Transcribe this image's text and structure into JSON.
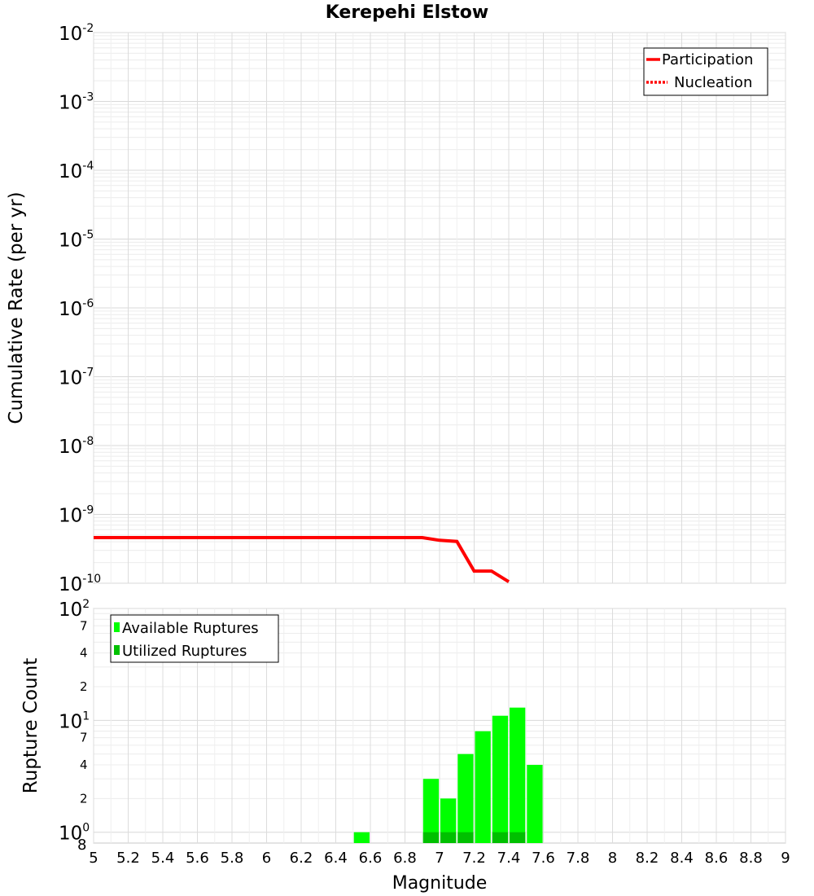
{
  "title": "Kerepehi Elstow",
  "chart_data": [
    {
      "type": "line",
      "title": "Kerepehi Elstow",
      "xlabel": "Magnitude",
      "ylabel": "Cumulative Rate (per yr)",
      "xlim": [
        5,
        9
      ],
      "ylim": [
        1e-10,
        0.01
      ],
      "yscale": "log",
      "grid": true,
      "legend_position": "top-right",
      "y_ticks": [
        {
          "base": "10",
          "exp": "-2"
        },
        {
          "base": "10",
          "exp": "-3"
        },
        {
          "base": "10",
          "exp": "-4"
        },
        {
          "base": "10",
          "exp": "-5"
        },
        {
          "base": "10",
          "exp": "-6"
        },
        {
          "base": "10",
          "exp": "-7"
        },
        {
          "base": "10",
          "exp": "-8"
        },
        {
          "base": "10",
          "exp": "-9"
        },
        {
          "base": "10",
          "exp": "-10"
        }
      ],
      "series": [
        {
          "name": "Participation",
          "style": "solid",
          "color": "#ff0000",
          "x": [
            5.0,
            5.1,
            5.2,
            5.3,
            5.4,
            5.5,
            5.6,
            5.7,
            5.8,
            5.9,
            6.0,
            6.1,
            6.2,
            6.3,
            6.4,
            6.5,
            6.6,
            6.7,
            6.8,
            6.9,
            7.0,
            7.1,
            7.2,
            7.3,
            7.4
          ],
          "y": [
            4.6e-10,
            4.6e-10,
            4.6e-10,
            4.6e-10,
            4.6e-10,
            4.6e-10,
            4.6e-10,
            4.6e-10,
            4.6e-10,
            4.6e-10,
            4.6e-10,
            4.6e-10,
            4.6e-10,
            4.6e-10,
            4.6e-10,
            4.6e-10,
            4.6e-10,
            4.6e-10,
            4.6e-10,
            4.6e-10,
            4.2e-10,
            4.05e-10,
            1.5e-10,
            1.5e-10,
            1.05e-10
          ]
        },
        {
          "name": "Nucleation",
          "style": "dotted",
          "color": "#ff0000",
          "x": [],
          "y": []
        }
      ]
    },
    {
      "type": "bar",
      "xlabel": "Magnitude",
      "ylabel": "Rupture Count",
      "xlim": [
        5,
        9
      ],
      "ylim": [
        0.8,
        100
      ],
      "yscale": "log",
      "grid": true,
      "legend_position": "top-left",
      "y_decade_ticks": [
        {
          "base": "10",
          "exp": "2"
        },
        {
          "base": "10",
          "exp": "1"
        },
        {
          "base": "10",
          "exp": "0"
        }
      ],
      "y_minor_labels": [
        {
          "value": 7,
          "label": "7"
        },
        {
          "value": 4,
          "label": "4"
        },
        {
          "value": 2,
          "label": "2"
        },
        {
          "value": 70,
          "label": "7"
        },
        {
          "value": 40,
          "label": "4"
        },
        {
          "value": 20,
          "label": "2"
        },
        {
          "value": 0.8,
          "label": "8"
        }
      ],
      "x_ticks": [
        "5",
        "5.2",
        "5.4",
        "5.6",
        "5.8",
        "6",
        "6.2",
        "6.4",
        "6.6",
        "6.8",
        "7",
        "7.2",
        "7.4",
        "7.6",
        "7.8",
        "8",
        "8.2",
        "8.4",
        "8.6",
        "8.8",
        "9"
      ],
      "series": [
        {
          "name": "Available Ruptures",
          "color": "#00ff00",
          "x": [
            6.55,
            6.95,
            7.05,
            7.15,
            7.25,
            7.35,
            7.45,
            7.55
          ],
          "values": [
            1,
            3,
            2,
            5,
            8,
            11,
            13,
            4
          ]
        },
        {
          "name": "Utilized Ruptures",
          "color": "#00c000",
          "x": [
            6.95,
            7.05,
            7.15,
            7.35,
            7.45
          ],
          "values": [
            1,
            1,
            1,
            1,
            1
          ]
        }
      ]
    }
  ]
}
